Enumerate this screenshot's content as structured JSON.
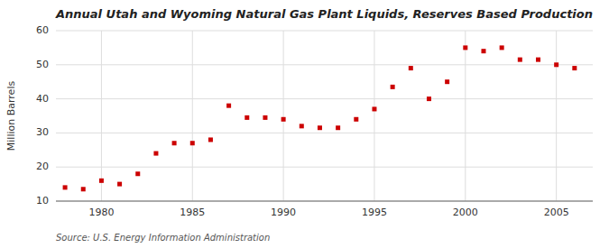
{
  "chart_data": {
    "type": "scatter",
    "title": "Annual Utah and Wyoming Natural Gas Plant Liquids, Reserves Based Production",
    "ylabel": "Million Barrels",
    "annotation": "Source: U.S. Energy Information Administration",
    "x": [
      1978,
      1979,
      1980,
      1981,
      1982,
      1983,
      1984,
      1985,
      1986,
      1987,
      1988,
      1989,
      1990,
      1991,
      1992,
      1993,
      1994,
      1995,
      1996,
      1997,
      1998,
      1999,
      2000,
      2001,
      2002,
      2003,
      2004,
      2005,
      2006
    ],
    "values": [
      14.0,
      13.5,
      16.0,
      15.0,
      18.0,
      24.0,
      27.0,
      27.0,
      28.0,
      38.0,
      34.5,
      34.5,
      34.0,
      32.0,
      31.5,
      31.5,
      34.0,
      37.0,
      43.5,
      49.0,
      40.0,
      45.0,
      55.0,
      54.0,
      55.0,
      51.5,
      51.5,
      50.0,
      49.0
    ],
    "color": "#cc0000",
    "marker": "square",
    "xlim": [
      1977.5,
      2007
    ],
    "ylim": [
      10,
      60
    ],
    "xticks": [
      1980,
      1985,
      1990,
      1995,
      2000,
      2005
    ],
    "yticks": [
      10,
      20,
      30,
      40,
      50,
      60
    ],
    "grid": true
  }
}
